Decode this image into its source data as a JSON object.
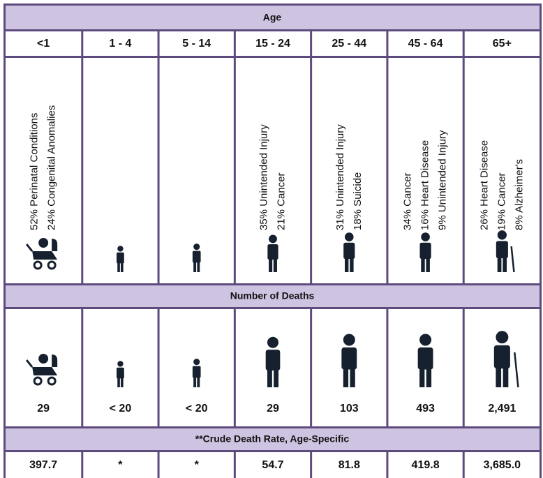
{
  "header": {
    "title": "Age"
  },
  "age_groups": [
    "<1",
    "1 - 4",
    "5 - 14",
    "15 - 24",
    "25 - 44",
    "45 - 64",
    "65+"
  ],
  "causes": [
    [
      "52% Perinatal Conditions",
      "24% Congenital Anomalies"
    ],
    [],
    [],
    [
      "35% Unintended  Injury",
      "21% Cancer"
    ],
    [
      "31% Unintended  Injury",
      "18% Suicide"
    ],
    [
      "34% Cancer",
      "16% Heart Disease",
      "9% Unintended  Injury"
    ],
    [
      "26% Heart Disease",
      "19% Cancer",
      "8% Alzheimer's"
    ]
  ],
  "deaths_title": "Number of Deaths",
  "deaths": [
    "29",
    "< 20",
    "< 20",
    "29",
    "103",
    "493",
    "2,491"
  ],
  "rate_title": "**Crude Death Rate, Age-Specific",
  "rates": [
    "397.7",
    "*",
    "*",
    "54.7",
    "81.8",
    "419.8",
    "3,685.0"
  ]
}
